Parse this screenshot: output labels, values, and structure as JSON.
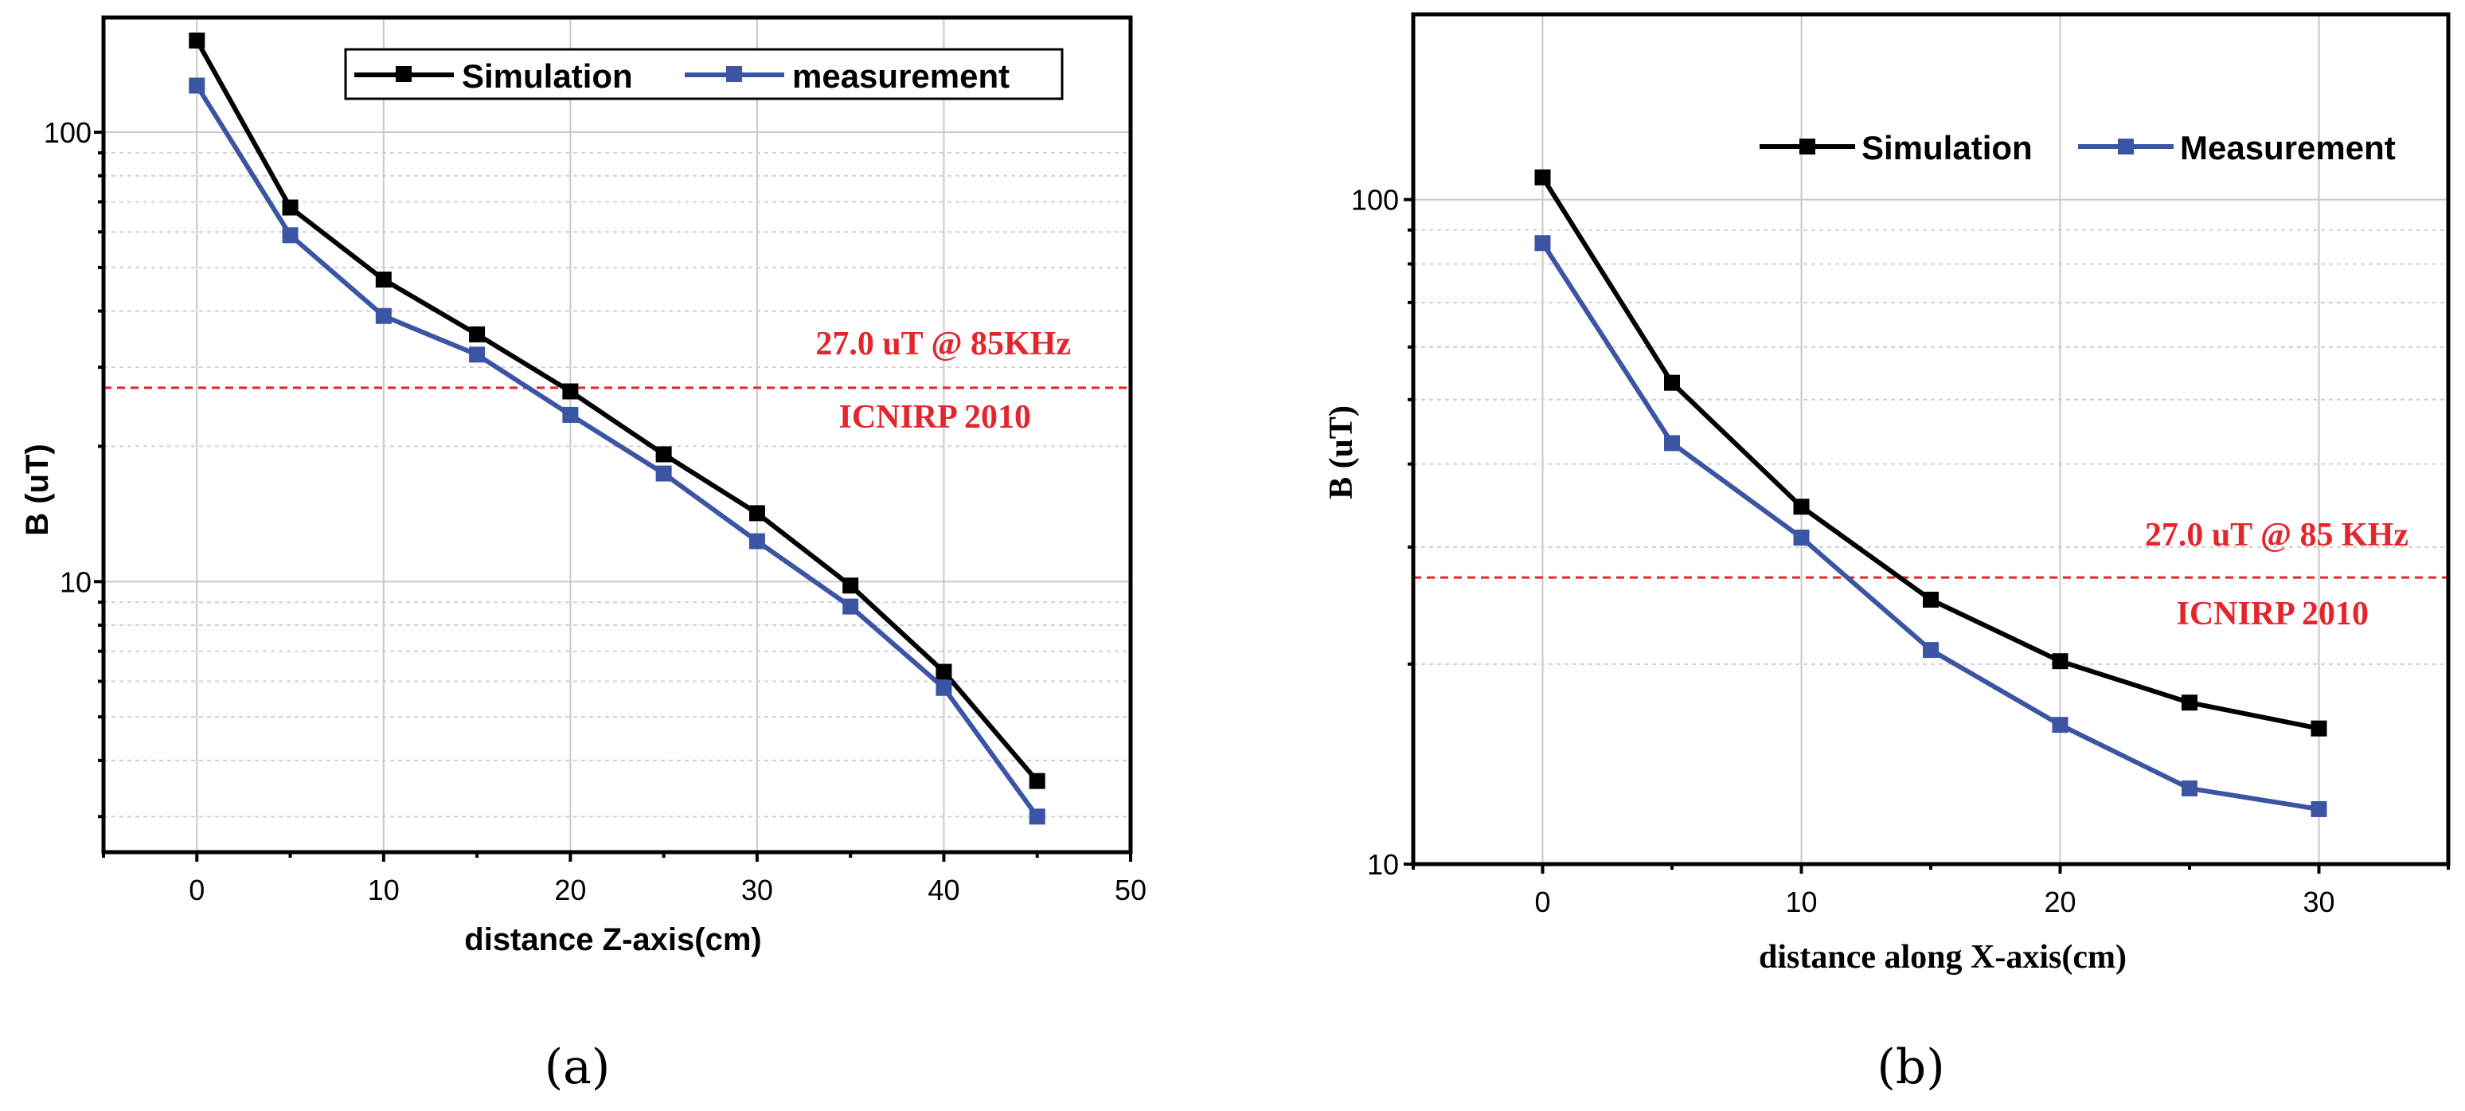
{
  "charts": [
    {
      "caption": "(a)",
      "chart_data": {
        "type": "line",
        "xlabel": "distance Z-axis(cm)",
        "ylabel": "B (uT)",
        "yscale": "log",
        "xlim": [
          -5,
          50
        ],
        "ylim": [
          2.5,
          180
        ],
        "xticks": [
          "0",
          "10",
          "20",
          "30",
          "40",
          "50"
        ],
        "yticks": [
          "10",
          "100"
        ],
        "x": [
          0,
          5,
          10,
          15,
          20,
          25,
          30,
          35,
          40,
          45
        ],
        "series": [
          {
            "name": "Simulation",
            "color": "#000000",
            "values": [
              160,
              68,
              47,
              35.5,
              26.5,
              19.2,
              14.2,
              9.8,
              6.3,
              3.6
            ]
          },
          {
            "name": "measurement",
            "color": "#3b54a4",
            "values": [
              127,
              59,
              39,
              32,
              23.5,
              17.4,
              12.3,
              8.8,
              5.8,
              3.0
            ]
          }
        ],
        "reference_line": {
          "value": 27.0,
          "color": "#e3262e"
        },
        "annotations": [
          "27.0 uT @ 85KHz",
          "ICNIRP 2010"
        ]
      }
    },
    {
      "caption": "(b)",
      "chart_data": {
        "type": "line",
        "xlabel": "distance along X-axis(cm)",
        "ylabel": "B (uT)",
        "yscale": "log",
        "xlim": [
          -5,
          35
        ],
        "ylim": [
          10,
          190
        ],
        "xticks": [
          "0",
          "10",
          "20",
          "30"
        ],
        "yticks": [
          "10",
          "100"
        ],
        "x": [
          0,
          5,
          10,
          15,
          20,
          25,
          30
        ],
        "series": [
          {
            "name": "Simulation",
            "color": "#000000",
            "values": [
              108,
              53,
              34.5,
              25,
              20.2,
              17.5,
              16.0
            ]
          },
          {
            "name": "Measurement",
            "color": "#3b54a4",
            "values": [
              86,
              43,
              31,
              21,
              16.2,
              13.0,
              12.1
            ]
          }
        ],
        "reference_line": {
          "value": 27.0,
          "color": "#e3262e"
        },
        "annotations": [
          "27.0 uT @ 85 KHz",
          "ICNIRP 2010"
        ]
      }
    }
  ]
}
